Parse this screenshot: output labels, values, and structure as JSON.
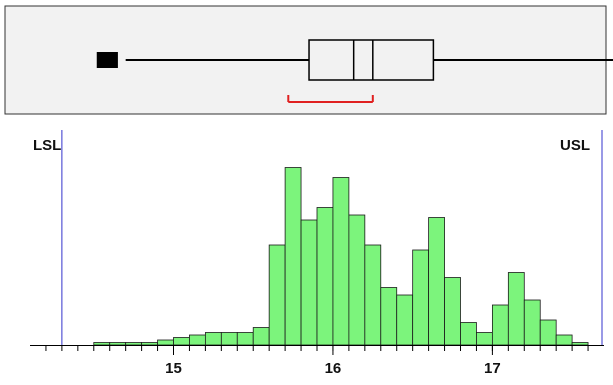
{
  "chart_data": [
    {
      "type": "boxplot",
      "outliers": [
        14.55,
        14.58,
        14.62
      ],
      "whisker_low": 14.7,
      "q1": 15.85,
      "median": 16.13,
      "mean": 16.25,
      "q3": 16.63,
      "whisker_high": 17.9,
      "shortest_half": [
        15.72,
        16.25
      ],
      "colors": {
        "box": "#000000",
        "background": "#f2f2f2",
        "shortest_half": "#e02020"
      }
    },
    {
      "type": "bar",
      "subtype": "histogram",
      "bin_width": 0.1,
      "bin_starts": [
        14.5,
        14.6,
        14.7,
        14.8,
        14.9,
        15.0,
        15.1,
        15.2,
        15.3,
        15.4,
        15.5,
        15.6,
        15.7,
        15.8,
        15.9,
        16.0,
        16.1,
        16.2,
        16.3,
        16.4,
        16.5,
        16.6,
        16.7,
        16.8,
        16.9,
        17.0,
        17.1,
        17.2,
        17.3,
        17.4,
        17.5
      ],
      "values": [
        1,
        1,
        1,
        1,
        2,
        3,
        4,
        5,
        5,
        5,
        7,
        40,
        71,
        50,
        55,
        67,
        52,
        40,
        23,
        20,
        38,
        51,
        27,
        9,
        5,
        16,
        29,
        18,
        10,
        4,
        1
      ],
      "xlim": [
        14.1,
        17.7
      ],
      "xticks": [
        15,
        16,
        17
      ],
      "ylim": [
        0,
        80
      ],
      "spec_limits": {
        "lsl": 14.3,
        "usl": 17.7
      },
      "spec_labels": {
        "lsl": "LSL",
        "usl": "USL"
      },
      "colors": {
        "bar": "#7cf47c",
        "bar_edge": "#1a1a1a",
        "spec_line": "#3333cc"
      }
    }
  ]
}
